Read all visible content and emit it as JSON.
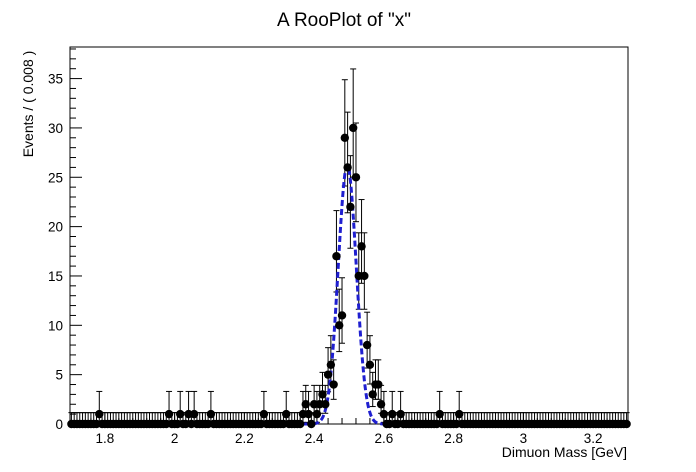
{
  "chart_data": {
    "type": "scatter",
    "title": "A RooPlot of \"x\"",
    "xlabel": "Dimuon Mass [GeV]",
    "ylabel": "Events / ( 0.008 )",
    "xlim": [
      1.7,
      3.3
    ],
    "ylim": [
      0,
      38.2
    ],
    "x_ticks": [
      1.8,
      2.0,
      2.2,
      2.4,
      2.6,
      2.8,
      3.0,
      3.2
    ],
    "x_tick_labels": [
      "1.8",
      "2",
      "2.2",
      "2.4",
      "2.6",
      "2.8",
      "3",
      "3.2"
    ],
    "y_ticks": [
      0,
      5,
      10,
      15,
      20,
      25,
      30,
      35
    ],
    "y_tick_labels": [
      "0",
      "5",
      "10",
      "15",
      "20",
      "25",
      "30",
      "35"
    ],
    "bin_width": 0.008,
    "series": [
      {
        "name": "data",
        "style": "points-with-errors",
        "color": "#000000",
        "points": [
          {
            "x": 1.78,
            "y": 1
          },
          {
            "x": 1.98,
            "y": 1
          },
          {
            "x": 2.012,
            "y": 1
          },
          {
            "x": 2.036,
            "y": 1
          },
          {
            "x": 2.052,
            "y": 1
          },
          {
            "x": 2.1,
            "y": 1
          },
          {
            "x": 2.252,
            "y": 1
          },
          {
            "x": 2.316,
            "y": 1
          },
          {
            "x": 2.364,
            "y": 1
          },
          {
            "x": 2.372,
            "y": 2
          },
          {
            "x": 2.38,
            "y": 1
          },
          {
            "x": 2.396,
            "y": 2
          },
          {
            "x": 2.404,
            "y": 1
          },
          {
            "x": 2.412,
            "y": 2
          },
          {
            "x": 2.42,
            "y": 3
          },
          {
            "x": 2.428,
            "y": 2
          },
          {
            "x": 2.436,
            "y": 5
          },
          {
            "x": 2.444,
            "y": 6
          },
          {
            "x": 2.452,
            "y": 4
          },
          {
            "x": 2.46,
            "y": 17
          },
          {
            "x": 2.468,
            "y": 10
          },
          {
            "x": 2.476,
            "y": 11
          },
          {
            "x": 2.484,
            "y": 29
          },
          {
            "x": 2.492,
            "y": 26
          },
          {
            "x": 2.5,
            "y": 22
          },
          {
            "x": 2.508,
            "y": 30
          },
          {
            "x": 2.516,
            "y": 25
          },
          {
            "x": 2.524,
            "y": 15
          },
          {
            "x": 2.532,
            "y": 18
          },
          {
            "x": 2.54,
            "y": 15
          },
          {
            "x": 2.548,
            "y": 8
          },
          {
            "x": 2.556,
            "y": 6
          },
          {
            "x": 2.564,
            "y": 3
          },
          {
            "x": 2.572,
            "y": 4
          },
          {
            "x": 2.58,
            "y": 4
          },
          {
            "x": 2.588,
            "y": 2
          },
          {
            "x": 2.596,
            "y": 1
          },
          {
            "x": 2.62,
            "y": 1
          },
          {
            "x": 2.644,
            "y": 1
          },
          {
            "x": 2.756,
            "y": 1
          },
          {
            "x": 2.812,
            "y": 1
          }
        ]
      },
      {
        "name": "fit",
        "style": "dashed-line",
        "color": "#1f1fd0",
        "model": {
          "shape": "gaussian",
          "mean": 2.495,
          "sigma": 0.026,
          "amplitude": 26.2
        }
      }
    ]
  }
}
